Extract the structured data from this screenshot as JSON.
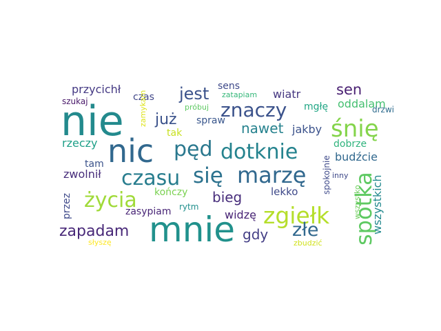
{
  "words": [
    {
      "text": "nie",
      "color": "#238a8d",
      "rot": 0
    },
    {
      "text": "mnie",
      "color": "#21918c",
      "rot": 0
    },
    {
      "text": "nic",
      "color": "#31688e",
      "rot": 0
    },
    {
      "text": "się",
      "color": "#2c728e",
      "rot": 0
    },
    {
      "text": "marzę",
      "color": "#31688e",
      "rot": 0
    },
    {
      "text": "czasu",
      "color": "#287d8e",
      "rot": 0
    },
    {
      "text": "dotknie",
      "color": "#25838e",
      "rot": 0
    },
    {
      "text": "zgiełk",
      "color": "#b5de2b",
      "rot": 0
    },
    {
      "text": "spotka",
      "color": "#5ec962",
      "rot": -90
    },
    {
      "text": "znaczy",
      "color": "#3b528b",
      "rot": 0
    },
    {
      "text": "śnię",
      "color": "#84d44b",
      "rot": 0
    },
    {
      "text": "życia",
      "color": "#a0da39",
      "rot": 0
    },
    {
      "text": "pęd",
      "color": "#2a788e",
      "rot": 0
    },
    {
      "text": "złe",
      "color": "#31688e",
      "rot": 0
    },
    {
      "text": "zapadam",
      "color": "#482878",
      "rot": 0
    },
    {
      "text": "jest",
      "color": "#3b528b",
      "rot": 0
    },
    {
      "text": "już",
      "color": "#3b528b",
      "rot": 0
    },
    {
      "text": "nawet",
      "color": "#26828e",
      "rot": 0
    },
    {
      "text": "bieg",
      "color": "#472d7b",
      "rot": 0
    },
    {
      "text": "gdy",
      "color": "#433e85",
      "rot": 0
    },
    {
      "text": "sen",
      "color": "#481f71",
      "rot": 0
    },
    {
      "text": "przycichł",
      "color": "#443983",
      "rot": 0
    },
    {
      "text": "wszystkich",
      "color": "#23898e",
      "rot": -90
    },
    {
      "text": "widzę",
      "color": "#482475",
      "rot": 0
    },
    {
      "text": "czas",
      "color": "#404688",
      "rot": 0
    },
    {
      "text": "sens",
      "color": "#3e4989",
      "rot": 0
    },
    {
      "text": "wiatr",
      "color": "#453781",
      "rot": 0
    },
    {
      "text": "oddalam",
      "color": "#44bf70",
      "rot": 0
    },
    {
      "text": "jakby",
      "color": "#3b528b",
      "rot": 0
    },
    {
      "text": "dobrze",
      "color": "#2eb37c",
      "rot": 0
    },
    {
      "text": "budźcie",
      "color": "#31688e",
      "rot": 0
    },
    {
      "text": "rzeczy",
      "color": "#1fa088",
      "rot": 0
    },
    {
      "text": "mgłę",
      "color": "#21a685",
      "rot": 0
    },
    {
      "text": "spraw",
      "color": "#39568c",
      "rot": 0
    },
    {
      "text": "tak",
      "color": "#c8e020",
      "rot": 0
    },
    {
      "text": "tam",
      "color": "#3b528b",
      "rot": 0
    },
    {
      "text": "zwolnił",
      "color": "#472d7b",
      "rot": 0
    },
    {
      "text": "kończy",
      "color": "#7ad151",
      "rot": 0
    },
    {
      "text": "lekko",
      "color": "#3e4989",
      "rot": 0
    },
    {
      "text": "zasypiam",
      "color": "#482576",
      "rot": 0
    },
    {
      "text": "przez",
      "color": "#3e4989",
      "rot": -90
    },
    {
      "text": "szukaj",
      "color": "#481769",
      "rot": 0
    },
    {
      "text": "próbuj",
      "color": "#5ec962",
      "rot": 0
    },
    {
      "text": "zatapiam",
      "color": "#35b779",
      "rot": 0
    },
    {
      "text": "drzwi",
      "color": "#2f6c8e",
      "rot": 0
    },
    {
      "text": "zamykam",
      "color": "#dde318",
      "rot": -90
    },
    {
      "text": "spokojnie",
      "color": "#3e4989",
      "rot": -90
    },
    {
      "text": "inny",
      "color": "#3e4989",
      "rot": 0
    },
    {
      "text": "rytm",
      "color": "#21908d",
      "rot": 0
    },
    {
      "text": "wszystko",
      "color": "#6ccd5a",
      "rot": -90
    },
    {
      "text": "słyszę",
      "color": "#fde725",
      "rot": 0
    },
    {
      "text": "zbudzić",
      "color": "#d0e11c",
      "rot": 0
    }
  ]
}
